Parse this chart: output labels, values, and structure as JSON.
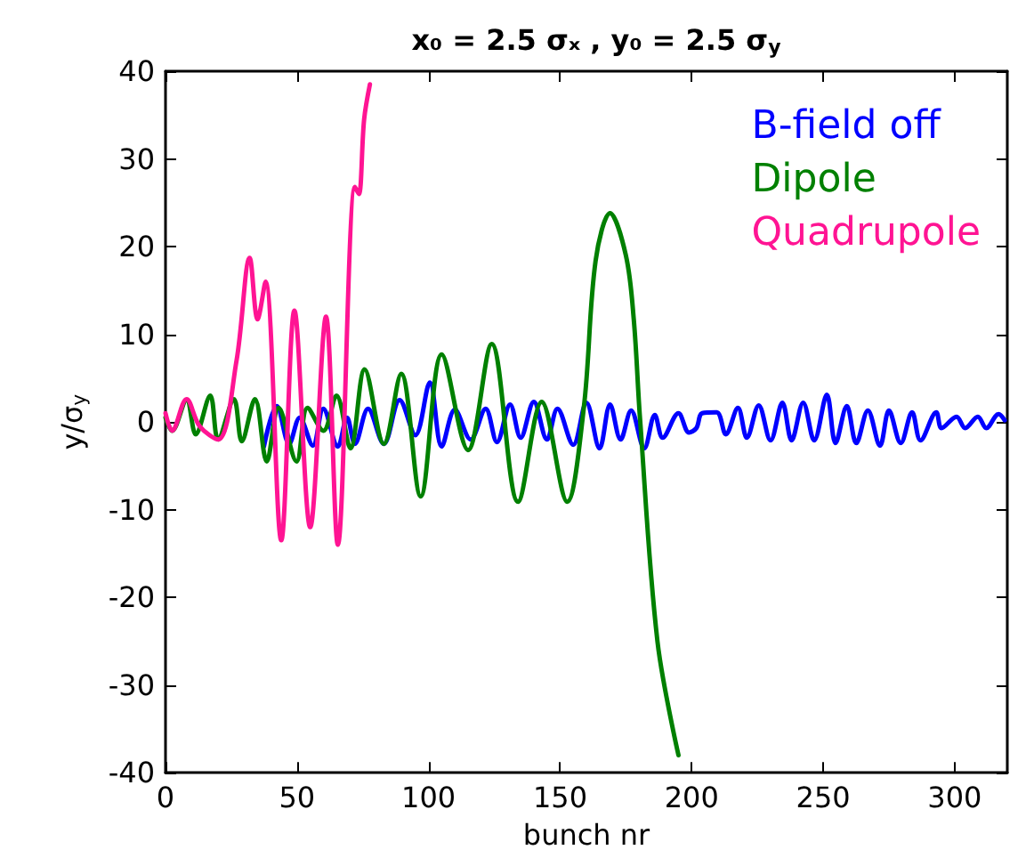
{
  "chart_data": {
    "type": "line",
    "title": "x₀ = 2.5 σₓ , y₀ = 2.5 σ$_{y}$",
    "xlabel": "bunch nr",
    "ylabel": "y/σ$_{y}$",
    "xlim": [
      0,
      320
    ],
    "xticks": [
      0,
      50,
      100,
      150,
      200,
      250,
      300
    ],
    "ylim": [
      -40,
      40
    ],
    "yticks": [
      -40,
      -30,
      -20,
      -10,
      0,
      10,
      20,
      30,
      40
    ],
    "grid": false,
    "legend": "top right",
    "marker": "none",
    "line_style": "solid",
    "series": [
      {
        "name": "B-field off",
        "color": "#0000ff",
        "x": [
          37.4,
          42.3,
          47,
          51,
          56,
          60,
          65.5,
          69,
          72,
          77,
          83,
          89,
          95,
          100.5,
          105,
          110,
          116,
          121.7,
          126,
          131,
          135,
          140,
          145,
          149,
          155,
          160,
          165,
          169,
          173,
          177,
          182,
          186,
          189,
          195,
          199,
          201.8,
          204,
          209.5,
          213,
          217.6,
          221,
          225.5,
          230,
          234.5,
          238,
          242.4,
          246.6,
          251.4,
          254.7,
          259,
          262.6,
          267,
          271.6,
          275,
          279.5,
          283.8,
          287,
          293,
          295,
          300.7,
          304,
          308.8,
          312,
          316.7,
          319
        ],
        "values": [
          -2.8,
          1.8,
          -2.5,
          0.5,
          -2.7,
          1.5,
          -2.8,
          0.5,
          -2.5,
          1.5,
          -2.5,
          2.5,
          -1.5,
          4.5,
          -2.8,
          1.4,
          -2,
          1.5,
          -2.3,
          2,
          -1.8,
          2.3,
          -2,
          1.5,
          -2.6,
          2.2,
          -3,
          2,
          -2,
          1.3,
          -3,
          0.8,
          -1.8,
          1,
          -1.2,
          -0.7,
          1,
          1.1,
          -1.4,
          1.6,
          -1.8,
          1.9,
          -2.1,
          2.2,
          -2.1,
          2.2,
          -2.1,
          3.1,
          -2.4,
          1.8,
          -2.4,
          1.3,
          -2.7,
          1.3,
          -2.4,
          1.1,
          -2.1,
          1.1,
          -0.7,
          0.6,
          -0.7,
          0.6,
          -0.7,
          0.9,
          0.2
        ]
      },
      {
        "name": "Dipole",
        "color": "#008000",
        "x": [
          0,
          2.5,
          8,
          11.5,
          17,
          20,
          26,
          29,
          34,
          38.5,
          43,
          49.8,
          54,
          60,
          65,
          70.3,
          75.7,
          83,
          89.6,
          97,
          105,
          115,
          124,
          134,
          143,
          152.7,
          159,
          163.5,
          169,
          175,
          178,
          180.4,
          187,
          195
        ],
        "values": [
          0.5,
          -1,
          2.5,
          -1.4,
          3,
          -2,
          2.6,
          -2.2,
          2.6,
          -4.5,
          1.6,
          -4.5,
          1.6,
          -1,
          3,
          -3,
          6,
          -2.5,
          5.5,
          -8.5,
          7.7,
          -3.2,
          8.9,
          -9.1,
          2.3,
          -9.1,
          1.6,
          18.4,
          23.8,
          19,
          11.7,
          0.3,
          -25,
          -38
        ]
      },
      {
        "name": "Quadrupole",
        "color": "#ff1493",
        "x": [
          0,
          2.5,
          8,
          13,
          20,
          27,
          32,
          35,
          38,
          44,
          49,
          55,
          61,
          65.5,
          72,
          73.5,
          75.5,
          77.7
        ],
        "values": [
          1,
          -1,
          2.6,
          -0.5,
          -2,
          7,
          18.7,
          11.7,
          16,
          -13.5,
          12.7,
          -12,
          12,
          -14,
          26.8,
          26,
          34.5,
          38.5
        ]
      }
    ]
  }
}
